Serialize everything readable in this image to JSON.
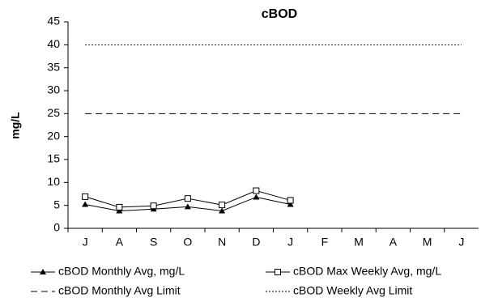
{
  "chart_data": {
    "type": "line",
    "title": "cBOD",
    "y_label": "mg/L",
    "categories": [
      "J",
      "A",
      "S",
      "O",
      "N",
      "D",
      "J",
      "F",
      "M",
      "A",
      "M",
      "J"
    ],
    "series": [
      {
        "name": "cBOD Monthly Avg, mg/L",
        "color": "#000000",
        "style": "solid",
        "marker": "triangle",
        "values": [
          5.2,
          3.8,
          4.2,
          4.7,
          3.8,
          6.8,
          5.2,
          null,
          null,
          null,
          null,
          null
        ]
      },
      {
        "name": "cBOD Max Weekly Avg, mg/L",
        "color": "#000000",
        "style": "solid",
        "marker": "square",
        "values": [
          6.9,
          4.6,
          4.9,
          6.5,
          5.1,
          8.2,
          6.1,
          null,
          null,
          null,
          null,
          null
        ]
      },
      {
        "name": "cBOD Monthly Avg Limit",
        "color": "#000000",
        "style": "dashed",
        "marker": null,
        "values": [
          25,
          25,
          25,
          25,
          25,
          25,
          25,
          25,
          25,
          25,
          25,
          25
        ]
      },
      {
        "name": "cBOD Weekly Avg Limit",
        "color": "#000000",
        "style": "dotted",
        "marker": null,
        "values": [
          40,
          40,
          40,
          40,
          40,
          40,
          40,
          40,
          40,
          40,
          40,
          40
        ]
      }
    ],
    "ylim": [
      0,
      45
    ],
    "yticks": [
      0,
      5,
      10,
      15,
      20,
      25,
      30,
      35,
      40,
      45
    ],
    "grid": false,
    "legend": "bottom"
  }
}
